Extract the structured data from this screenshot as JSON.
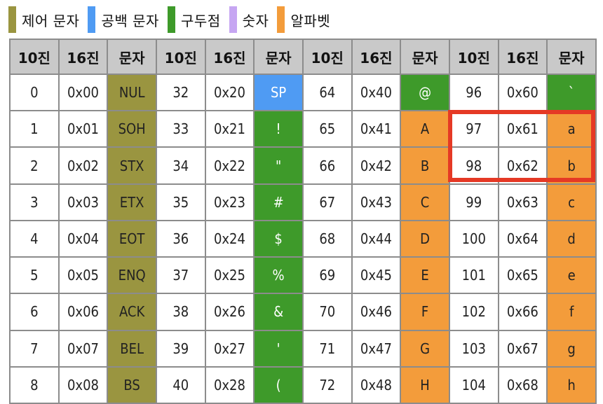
{
  "colors": {
    "control": "#9a9540",
    "space": "#4f9bf3",
    "punct": "#3e9a2a",
    "digit": "#c6a6f2",
    "alpha": "#f39c3b",
    "highlight": "#e53925",
    "header_bg": "#c9c9c9",
    "grid": "#8c8c8c"
  },
  "legend": [
    {
      "label": "제어 문자",
      "color": "#9a9540"
    },
    {
      "label": "공백 문자",
      "color": "#4f9bf3"
    },
    {
      "label": "구두점",
      "color": "#3e9a2a"
    },
    {
      "label": "숫자",
      "color": "#c6a6f2"
    },
    {
      "label": "알파벳",
      "color": "#f39c3b"
    }
  ],
  "table": {
    "headers": [
      "10진",
      "16진",
      "문자",
      "10진",
      "16진",
      "문자",
      "10진",
      "16진",
      "문자",
      "10진",
      "16진",
      "문자"
    ],
    "rows": [
      [
        {
          "v": "0"
        },
        {
          "v": "0x00"
        },
        {
          "v": "NUL",
          "type": "control"
        },
        {
          "v": "32"
        },
        {
          "v": "0x20"
        },
        {
          "v": "SP",
          "type": "space"
        },
        {
          "v": "64"
        },
        {
          "v": "0x40"
        },
        {
          "v": "@",
          "type": "punct"
        },
        {
          "v": "96"
        },
        {
          "v": "0x60"
        },
        {
          "v": "`",
          "type": "punct"
        }
      ],
      [
        {
          "v": "1"
        },
        {
          "v": "0x01"
        },
        {
          "v": "SOH",
          "type": "control"
        },
        {
          "v": "33"
        },
        {
          "v": "0x21"
        },
        {
          "v": "!",
          "type": "punct"
        },
        {
          "v": "65"
        },
        {
          "v": "0x41"
        },
        {
          "v": "A",
          "type": "alpha"
        },
        {
          "v": "97"
        },
        {
          "v": "0x61"
        },
        {
          "v": "a",
          "type": "alpha"
        }
      ],
      [
        {
          "v": "2"
        },
        {
          "v": "0x02"
        },
        {
          "v": "STX",
          "type": "control"
        },
        {
          "v": "34"
        },
        {
          "v": "0x22"
        },
        {
          "v": "\"",
          "type": "punct"
        },
        {
          "v": "66"
        },
        {
          "v": "0x42"
        },
        {
          "v": "B",
          "type": "alpha"
        },
        {
          "v": "98"
        },
        {
          "v": "0x62"
        },
        {
          "v": "b",
          "type": "alpha"
        }
      ],
      [
        {
          "v": "3"
        },
        {
          "v": "0x03"
        },
        {
          "v": "ETX",
          "type": "control"
        },
        {
          "v": "35"
        },
        {
          "v": "0x23"
        },
        {
          "v": "#",
          "type": "punct"
        },
        {
          "v": "67"
        },
        {
          "v": "0x43"
        },
        {
          "v": "C",
          "type": "alpha"
        },
        {
          "v": "99"
        },
        {
          "v": "0x63"
        },
        {
          "v": "c",
          "type": "alpha"
        }
      ],
      [
        {
          "v": "4"
        },
        {
          "v": "0x04"
        },
        {
          "v": "EOT",
          "type": "control"
        },
        {
          "v": "36"
        },
        {
          "v": "0x24"
        },
        {
          "v": "$",
          "type": "punct"
        },
        {
          "v": "68"
        },
        {
          "v": "0x44"
        },
        {
          "v": "D",
          "type": "alpha"
        },
        {
          "v": "100"
        },
        {
          "v": "0x64"
        },
        {
          "v": "d",
          "type": "alpha"
        }
      ],
      [
        {
          "v": "5"
        },
        {
          "v": "0x05"
        },
        {
          "v": "ENQ",
          "type": "control"
        },
        {
          "v": "37"
        },
        {
          "v": "0x25"
        },
        {
          "v": "%",
          "type": "punct"
        },
        {
          "v": "69"
        },
        {
          "v": "0x45"
        },
        {
          "v": "E",
          "type": "alpha"
        },
        {
          "v": "101"
        },
        {
          "v": "0x65"
        },
        {
          "v": "e",
          "type": "alpha"
        }
      ],
      [
        {
          "v": "6"
        },
        {
          "v": "0x06"
        },
        {
          "v": "ACK",
          "type": "control"
        },
        {
          "v": "38"
        },
        {
          "v": "0x26"
        },
        {
          "v": "&",
          "type": "punct"
        },
        {
          "v": "70"
        },
        {
          "v": "0x46"
        },
        {
          "v": "F",
          "type": "alpha"
        },
        {
          "v": "102"
        },
        {
          "v": "0x66"
        },
        {
          "v": "f",
          "type": "alpha"
        }
      ],
      [
        {
          "v": "7"
        },
        {
          "v": "0x07"
        },
        {
          "v": "BEL",
          "type": "control"
        },
        {
          "v": "39"
        },
        {
          "v": "0x27"
        },
        {
          "v": "'",
          "type": "punct"
        },
        {
          "v": "71"
        },
        {
          "v": "0x47"
        },
        {
          "v": "G",
          "type": "alpha"
        },
        {
          "v": "103"
        },
        {
          "v": "0x67"
        },
        {
          "v": "g",
          "type": "alpha"
        }
      ],
      [
        {
          "v": "8"
        },
        {
          "v": "0x08"
        },
        {
          "v": "BS",
          "type": "control"
        },
        {
          "v": "40"
        },
        {
          "v": "0x28"
        },
        {
          "v": "(",
          "type": "punct"
        },
        {
          "v": "72"
        },
        {
          "v": "0x48"
        },
        {
          "v": "H",
          "type": "alpha"
        },
        {
          "v": "104"
        },
        {
          "v": "0x68"
        },
        {
          "v": "h",
          "type": "alpha"
        }
      ]
    ]
  }
}
